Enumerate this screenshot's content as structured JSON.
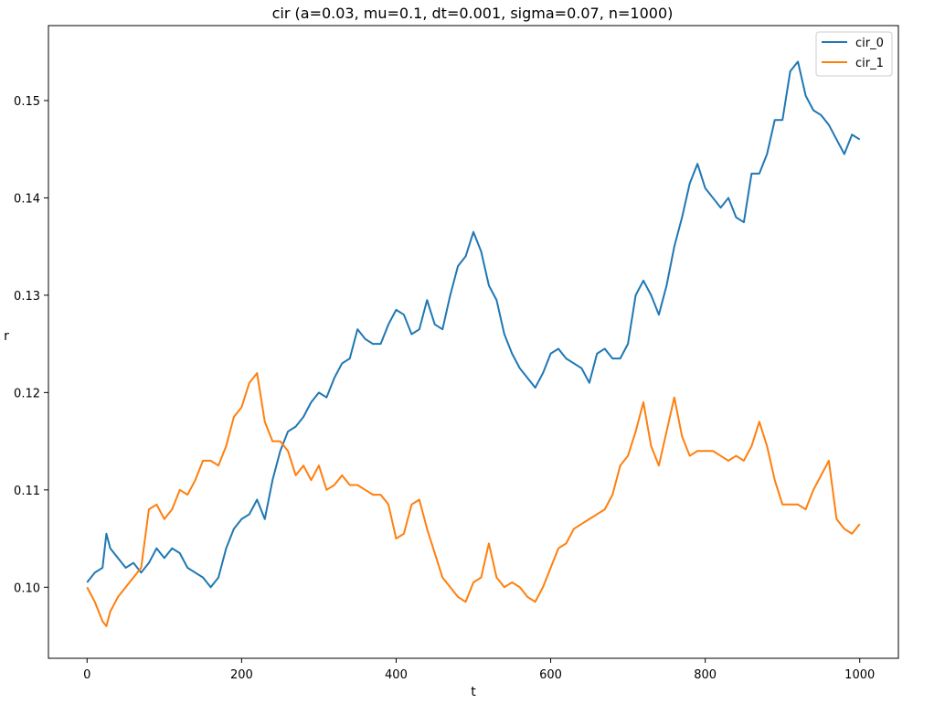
{
  "chart_data": {
    "type": "line",
    "title": "cir (a=0.03, mu=0.1, dt=0.001, sigma=0.07, n=1000)",
    "xlabel": "t",
    "ylabel": "r",
    "xlim": [
      -50,
      1050
    ],
    "ylim": [
      0.0927,
      0.1577
    ],
    "xticks": [
      0,
      200,
      400,
      600,
      800,
      1000
    ],
    "xtick_labels": [
      "0",
      "200",
      "400",
      "600",
      "800",
      "1000"
    ],
    "yticks": [
      0.1,
      0.11,
      0.12,
      0.13,
      0.14,
      0.15
    ],
    "ytick_labels": [
      "0.10",
      "0.11",
      "0.12",
      "0.13",
      "0.14",
      "0.15"
    ],
    "grid": false,
    "legend_position": "top-right",
    "series": [
      {
        "name": "cir_0",
        "color": "#1f77b4",
        "x": [
          0,
          10,
          20,
          25,
          30,
          40,
          50,
          60,
          70,
          80,
          90,
          100,
          110,
          120,
          130,
          140,
          150,
          160,
          170,
          180,
          190,
          200,
          210,
          220,
          230,
          240,
          250,
          260,
          270,
          280,
          290,
          300,
          310,
          320,
          330,
          340,
          350,
          360,
          370,
          380,
          390,
          400,
          410,
          420,
          430,
          440,
          450,
          460,
          470,
          480,
          490,
          500,
          510,
          520,
          530,
          540,
          550,
          560,
          570,
          580,
          590,
          600,
          610,
          620,
          630,
          640,
          650,
          660,
          670,
          680,
          690,
          700,
          710,
          720,
          730,
          740,
          750,
          760,
          770,
          780,
          790,
          800,
          810,
          820,
          830,
          840,
          850,
          860,
          870,
          880,
          890,
          900,
          910,
          920,
          930,
          940,
          950,
          960,
          970,
          980,
          990,
          1000
        ],
        "values": [
          0.1005,
          0.1015,
          0.102,
          0.1055,
          0.104,
          0.103,
          0.102,
          0.1025,
          0.1015,
          0.1025,
          0.104,
          0.103,
          0.104,
          0.1035,
          0.102,
          0.1015,
          0.101,
          0.1,
          0.101,
          0.104,
          0.106,
          0.107,
          0.1075,
          0.109,
          0.107,
          0.111,
          0.114,
          0.116,
          0.1165,
          0.1175,
          0.119,
          0.12,
          0.1195,
          0.1215,
          0.123,
          0.1235,
          0.1265,
          0.1255,
          0.125,
          0.125,
          0.127,
          0.1285,
          0.128,
          0.126,
          0.1265,
          0.1295,
          0.127,
          0.1265,
          0.13,
          0.133,
          0.134,
          0.1365,
          0.1345,
          0.131,
          0.1295,
          0.126,
          0.124,
          0.1225,
          0.1215,
          0.1205,
          0.122,
          0.124,
          0.1245,
          0.1235,
          0.123,
          0.1225,
          0.121,
          0.124,
          0.1245,
          0.1235,
          0.1235,
          0.125,
          0.13,
          0.1315,
          0.13,
          0.128,
          0.131,
          0.135,
          0.138,
          0.1415,
          0.1435,
          0.141,
          0.14,
          0.139,
          0.14,
          0.138,
          0.1375,
          0.1425,
          0.1425,
          0.1445,
          0.148,
          0.148,
          0.153,
          0.154,
          0.1505,
          0.149,
          0.1485,
          0.1475,
          0.146,
          0.1445,
          0.1465,
          0.146
        ]
      },
      {
        "name": "cir_1",
        "color": "#ff7f0e",
        "x": [
          0,
          10,
          15,
          20,
          25,
          30,
          40,
          50,
          60,
          70,
          80,
          90,
          100,
          110,
          120,
          130,
          140,
          150,
          160,
          170,
          180,
          190,
          200,
          210,
          220,
          230,
          240,
          250,
          260,
          270,
          280,
          290,
          300,
          310,
          320,
          330,
          340,
          350,
          360,
          370,
          380,
          390,
          400,
          410,
          420,
          430,
          440,
          450,
          460,
          470,
          480,
          490,
          500,
          510,
          520,
          530,
          540,
          550,
          560,
          570,
          580,
          590,
          600,
          610,
          620,
          630,
          640,
          650,
          660,
          670,
          680,
          690,
          700,
          710,
          720,
          730,
          740,
          750,
          760,
          770,
          780,
          790,
          800,
          810,
          820,
          830,
          840,
          850,
          860,
          870,
          880,
          890,
          900,
          910,
          920,
          930,
          940,
          950,
          960,
          970,
          980,
          990,
          1000
        ],
        "values": [
          0.1,
          0.0985,
          0.0975,
          0.0965,
          0.096,
          0.0975,
          0.099,
          0.1,
          0.101,
          0.102,
          0.108,
          0.1085,
          0.107,
          0.108,
          0.11,
          0.1095,
          0.111,
          0.113,
          0.113,
          0.1125,
          0.1145,
          0.1175,
          0.1185,
          0.121,
          0.122,
          0.117,
          0.115,
          0.115,
          0.114,
          0.1115,
          0.1125,
          0.111,
          0.1125,
          0.11,
          0.1105,
          0.1115,
          0.1105,
          0.1105,
          0.11,
          0.1095,
          0.1095,
          0.1085,
          0.105,
          0.1055,
          0.1085,
          0.109,
          0.106,
          0.1035,
          0.101,
          0.1,
          0.099,
          0.0985,
          0.1005,
          0.101,
          0.1045,
          0.101,
          0.1,
          0.1005,
          0.1,
          0.099,
          0.0985,
          0.1,
          0.102,
          0.104,
          0.1045,
          0.106,
          0.1065,
          0.107,
          0.1075,
          0.108,
          0.1095,
          0.1125,
          0.1135,
          0.116,
          0.119,
          0.1145,
          0.1125,
          0.116,
          0.1195,
          0.1155,
          0.1135,
          0.114,
          0.114,
          0.114,
          0.1135,
          0.113,
          0.1135,
          0.113,
          0.1145,
          0.117,
          0.1145,
          0.111,
          0.1085,
          0.1085,
          0.1085,
          0.108,
          0.11,
          0.1115,
          0.113,
          0.107,
          0.106,
          0.1055,
          0.1065
        ]
      }
    ]
  }
}
